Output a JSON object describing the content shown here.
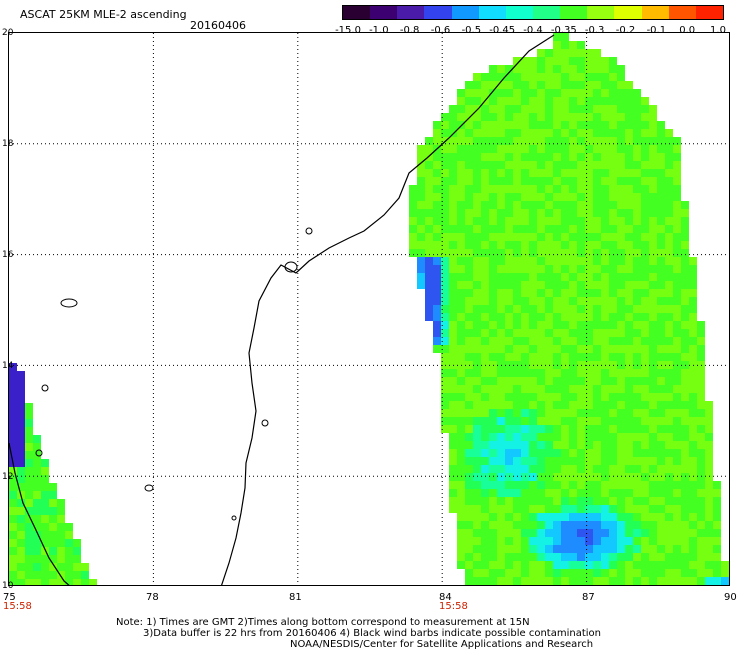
{
  "header": {
    "title": "ASCAT 25KM MLE-2 ascending",
    "date": "20160406"
  },
  "colorbar": {
    "labels": [
      "-15.0",
      "-1.0",
      "-0.8",
      "-0.6",
      "-0.5",
      "-0.45",
      "-0.4",
      "-0.35",
      "-0.3",
      "-0.2",
      "-0.1",
      "0.0",
      "1.0"
    ],
    "colors": [
      "#2a0033",
      "#3d0070",
      "#4a1aa8",
      "#3344ee",
      "#1199ff",
      "#11ddff",
      "#11ffcc",
      "#22ff88",
      "#44ff22",
      "#99ff11",
      "#ddff00",
      "#ffbb00",
      "#ff5500",
      "#ff2200"
    ]
  },
  "map": {
    "lat_labels": [
      "20",
      "18",
      "16",
      "14",
      "12",
      "10"
    ],
    "lon_labels": [
      "75",
      "78",
      "81",
      "84",
      "87",
      "90"
    ],
    "time_labels": [
      "15:58",
      "15:58"
    ],
    "lat_range": [
      10,
      20
    ],
    "lon_range": [
      75,
      90
    ]
  },
  "footer": {
    "line1": "Note: 1) Times are GMT 2)Times along bottom correspond to measurement at 15N",
    "line2": "3)Data buffer is 22 hrs from 20160406 4) Black wind barbs indicate possible contamination",
    "line3": "NOAA/NESDIS/Center for Satellite Applications and Research"
  }
}
